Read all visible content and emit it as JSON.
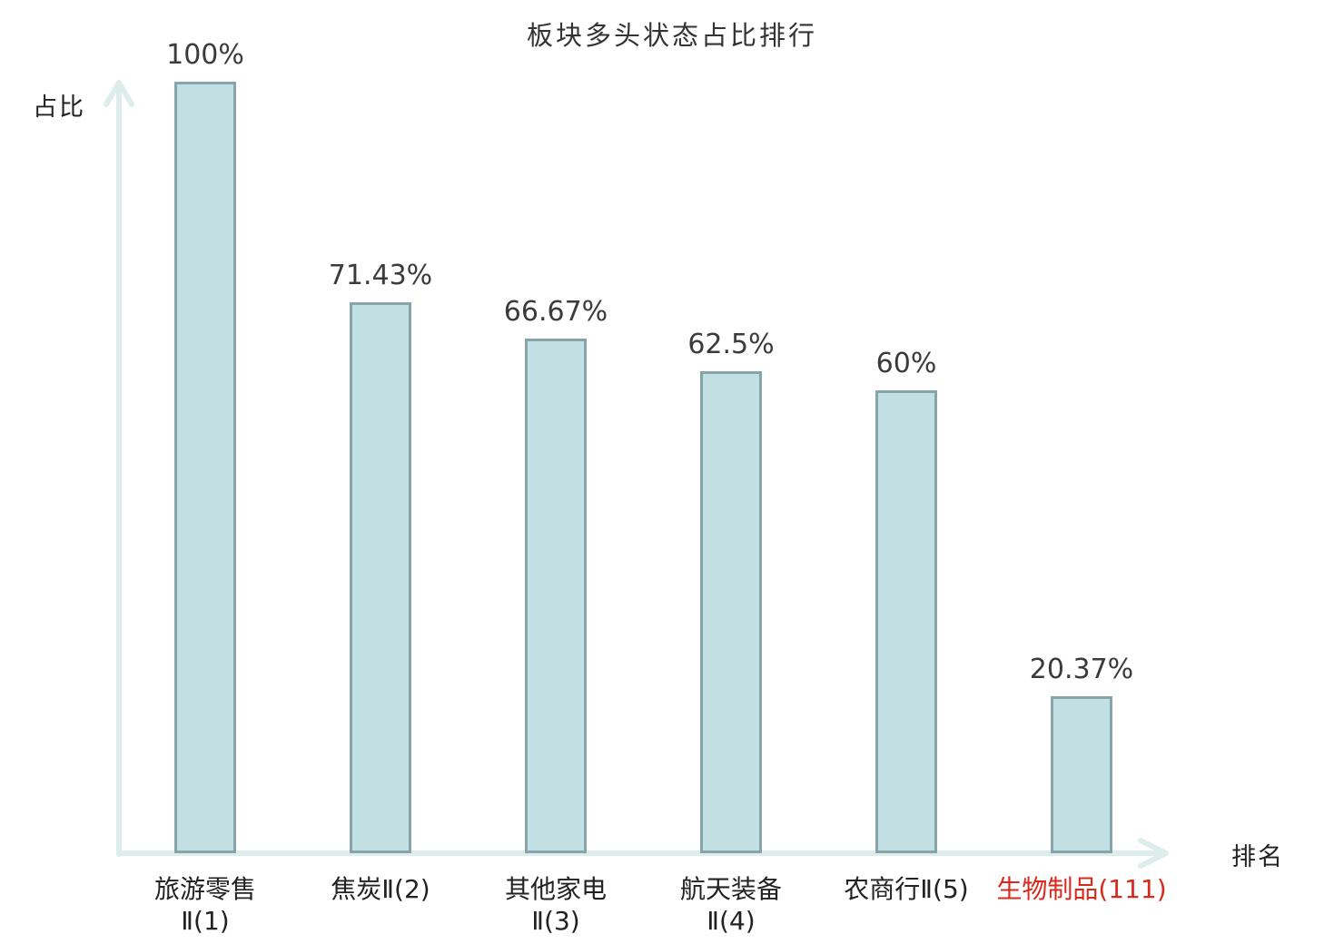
{
  "chart_data": {
    "type": "bar",
    "title": "板块多头状态占比排行",
    "xlabel": "排名",
    "ylabel": "占比",
    "categories": [
      "旅游零售Ⅱ(1)",
      "焦炭Ⅱ(2)",
      "其他家电Ⅱ(3)",
      "航天装备Ⅱ(4)",
      "农商行Ⅱ(5)",
      "生物制品(111)"
    ],
    "category_lines": [
      [
        "旅游零售",
        "Ⅱ(1)"
      ],
      [
        "焦炭Ⅱ(2)"
      ],
      [
        "其他家电",
        "Ⅱ(3)"
      ],
      [
        "航天装备",
        "Ⅱ(4)"
      ],
      [
        "农商行Ⅱ(5)"
      ],
      [
        "生物制品(111)"
      ]
    ],
    "values": [
      100,
      71.43,
      66.67,
      62.5,
      60,
      20.37
    ],
    "value_labels": [
      "100%",
      "71.43%",
      "66.67%",
      "62.5%",
      "60%",
      "20.37%"
    ],
    "ylim": [
      0,
      100
    ],
    "grid": false,
    "legend": null,
    "highlight_category_index": 5,
    "colors": {
      "bar_fill": "#c2e0e3",
      "bar_border": "#87a4aa",
      "axis": "#ddedeb",
      "text": "#3b3b3b",
      "category_text": "#222222",
      "highlight_text": "#d9281c"
    }
  }
}
